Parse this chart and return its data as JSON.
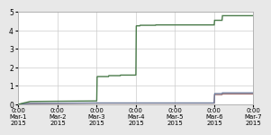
{
  "title": "",
  "ylim": [
    0.0,
    5.0
  ],
  "yticks": [
    0.0,
    1.0,
    2.0,
    3.0,
    4.0,
    5.0
  ],
  "xlim": [
    0.0,
    6.0
  ],
  "bg_color": "#e8e8e8",
  "plot_bg_color": "#ffffff",
  "grid_color": "#cccccc",
  "lines": [
    {
      "color": "#4a7a4a",
      "linewidth": 1.0,
      "data_x": [
        0.0,
        0.05,
        0.1,
        0.2,
        0.3,
        2.0,
        2.01,
        2.3,
        2.31,
        2.6,
        2.61,
        3.0,
        3.01,
        3.1,
        3.11,
        3.5,
        3.51,
        5.0,
        5.01,
        5.2,
        5.21,
        6.0
      ],
      "data_y": [
        0.0,
        0.02,
        0.05,
        0.1,
        0.15,
        0.18,
        1.5,
        1.5,
        1.55,
        1.55,
        1.58,
        1.58,
        4.25,
        4.25,
        4.28,
        4.28,
        4.3,
        4.3,
        4.55,
        4.55,
        4.8,
        4.8
      ]
    },
    {
      "color": "#6a7a9a",
      "linewidth": 0.9,
      "data_x": [
        0.0,
        0.05,
        0.1,
        0.2,
        0.3,
        2.0,
        2.01,
        5.0,
        5.01,
        5.2,
        5.21,
        6.0
      ],
      "data_y": [
        0.0,
        0.01,
        0.02,
        0.03,
        0.05,
        0.07,
        0.07,
        0.07,
        0.58,
        0.58,
        0.62,
        0.62
      ]
    },
    {
      "color": "#9a6a6a",
      "linewidth": 0.9,
      "data_x": [
        0.0,
        0.05,
        0.1,
        0.2,
        0.3,
        2.0,
        2.01,
        5.0,
        5.01,
        5.2,
        5.21,
        6.0
      ],
      "data_y": [
        0.0,
        0.01,
        0.02,
        0.03,
        0.04,
        0.06,
        0.06,
        0.06,
        0.52,
        0.52,
        0.56,
        0.56
      ]
    }
  ],
  "xtick_positions": [
    0.0,
    1.0,
    2.0,
    3.0,
    4.0,
    5.0,
    6.0
  ],
  "xtick_labels": [
    "0:00\nMar-1\n2015",
    "0:00\nMar-2\n2015",
    "0:00\nMar-3\n2015",
    "0:00\nMar-4\n2015",
    "0:00\nMar-5\n2015",
    "0:00\nMar-6\n2015",
    "0:00\nMar-7\n2015"
  ],
  "tick_fontsize": 5.0,
  "ytick_fontsize": 5.5
}
